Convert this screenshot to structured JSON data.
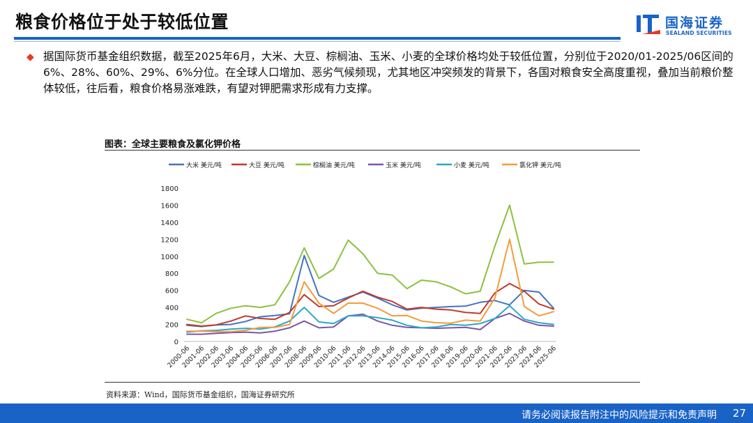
{
  "header": {
    "title": "粮食价格位于处于较低位置",
    "logo_cn": "国海证券",
    "logo_en": "SEALAND SECURITIES"
  },
  "bullet": {
    "text": "据国际货币基金组织数据，截至2025年6月，大米、大豆、棕榈油、玉米、小麦的全球价格均处于较低位置，分别位于2020/01-2025/06区间的6%、28%、60%、29%、6%分位。在全球人口增加、恶劣气候频现，尤其地区冲突频发的背景下，各国对粮食安全高度重视，叠加当前粮价整体较低，往后看，粮食价格易涨难跌，有望对钾肥需求形成有力支撑。"
  },
  "chart_title": "图表：全球主要粮食及氯化钾价格",
  "source": "资料来源：Wind，国际货币基金组织，国海证券研究所",
  "footer": {
    "disclaimer": "请务必阅读报告附注中的风险提示和免责声明",
    "page": "27"
  },
  "colors": {
    "brand": "#1a63c6",
    "bullet": "#e63a21",
    "rice": "#4472c4",
    "soybean": "#c0392b",
    "palm_oil": "#8fbf3f",
    "corn": "#7a55a8",
    "wheat": "#2ba7c8",
    "potash": "#f39c3a"
  },
  "chart_data": {
    "type": "line",
    "title": "全球主要粮食及氯化钾价格",
    "xlabel": "",
    "ylabel": "",
    "ylim": [
      0,
      1800
    ],
    "yticks": [
      0,
      200,
      400,
      600,
      800,
      1000,
      1200,
      1400,
      1600,
      1800
    ],
    "grid": false,
    "legend_position": "top",
    "x": [
      "2000-06",
      "2001-06",
      "2002-06",
      "2003-06",
      "2004-06",
      "2005-06",
      "2006-06",
      "2007-06",
      "2008-06",
      "2009-06",
      "2010-06",
      "2011-06",
      "2012-06",
      "2013-06",
      "2014-06",
      "2015-06",
      "2016-06",
      "2017-06",
      "2018-06",
      "2019-06",
      "2020-06",
      "2021-06",
      "2022-06",
      "2023-06",
      "2024-06",
      "2025-06"
    ],
    "series": [
      {
        "name": "大米 美元/吨",
        "color": "#4472c4",
        "values": [
          190,
          175,
          195,
          200,
          235,
          290,
          305,
          325,
          1010,
          540,
          460,
          520,
          580,
          510,
          430,
          370,
          390,
          400,
          410,
          415,
          460,
          480,
          430,
          600,
          580,
          390
        ]
      },
      {
        "name": "大豆 美元/吨",
        "color": "#c0392b",
        "values": [
          200,
          180,
          195,
          240,
          300,
          270,
          260,
          340,
          550,
          410,
          420,
          510,
          590,
          520,
          470,
          380,
          400,
          380,
          370,
          340,
          330,
          570,
          680,
          590,
          440,
          380
        ]
      },
      {
        "name": "棕榈油 美元/吨",
        "color": "#8fbf3f",
        "values": [
          260,
          220,
          330,
          390,
          420,
          400,
          430,
          700,
          1100,
          740,
          850,
          1190,
          1030,
          800,
          780,
          620,
          720,
          700,
          640,
          560,
          590,
          1120,
          1600,
          910,
          930,
          930
        ]
      },
      {
        "name": "玉米 美元/吨",
        "color": "#7a55a8",
        "values": [
          85,
          85,
          95,
          105,
          110,
          100,
          120,
          160,
          240,
          160,
          170,
          300,
          320,
          240,
          190,
          165,
          160,
          155,
          160,
          165,
          140,
          270,
          330,
          240,
          190,
          180
        ]
      },
      {
        "name": "小麦 美元/吨",
        "color": "#2ba7c8",
        "values": [
          110,
          125,
          130,
          145,
          155,
          145,
          170,
          240,
          400,
          230,
          210,
          300,
          300,
          280,
          250,
          190,
          160,
          170,
          200,
          190,
          210,
          270,
          420,
          260,
          220,
          200
        ]
      },
      {
        "name": "氯化钾 美元/吨",
        "color": "#f39c3a",
        "values": [
          120,
          120,
          115,
          115,
          130,
          165,
          165,
          200,
          700,
          450,
          330,
          450,
          450,
          390,
          300,
          305,
          240,
          220,
          215,
          250,
          240,
          510,
          1200,
          410,
          300,
          350
        ]
      }
    ]
  }
}
